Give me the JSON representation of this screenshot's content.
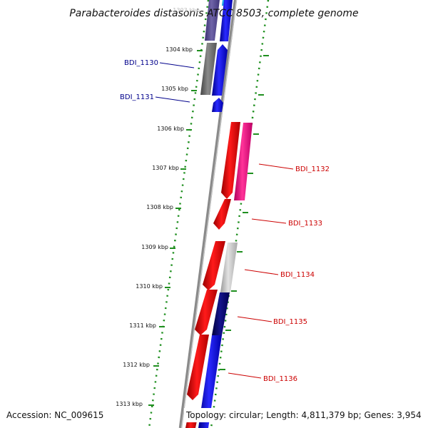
{
  "title": "Parabacteroides distasonis ATCC 8503, complete genome",
  "accession": "Accession: NC_009615",
  "topology": "Topology: circular; Length: 4,811,379 bp; Genes: 3,954",
  "top_tick_faint": "1303 kbp",
  "position_labels": [
    "1304 kbp",
    "1305 kbp",
    "1306 kbp",
    "1307 kbp",
    "1308 kbp",
    "1309 kbp",
    "1310 kbp",
    "1311 kbp",
    "1312 kbp",
    "1313 kbp"
  ],
  "gene_labels": [
    {
      "text": "BDI_1130",
      "strand": "reverse"
    },
    {
      "text": "BDI_1131",
      "strand": "reverse"
    },
    {
      "text": "BDI_1132",
      "strand": "forward"
    },
    {
      "text": "BDI_1133",
      "strand": "forward"
    },
    {
      "text": "BDI_1134",
      "strand": "forward"
    },
    {
      "text": "BDI_1135",
      "strand": "forward"
    },
    {
      "text": "BDI_1136",
      "strand": "forward"
    }
  ],
  "colors": {
    "forward_label": "#cc0000",
    "reverse_label": "#00008b",
    "axis": "#888888",
    "dots": "#1f8f1f",
    "red": "#ee0000",
    "blue": "#1010ee",
    "magenta": "#ff1a8c",
    "grey": "#777777",
    "light_grey": "#c8c8c8",
    "navy": "#06066a",
    "slate": "#5a4f8a"
  }
}
